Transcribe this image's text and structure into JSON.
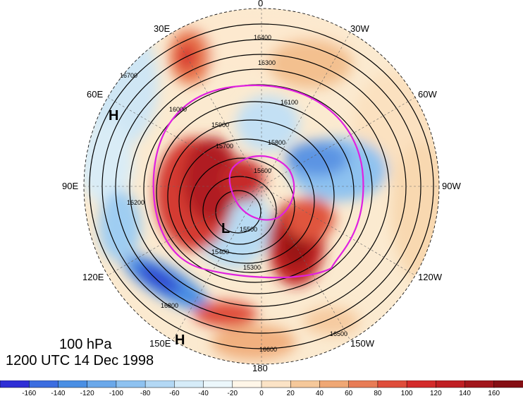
{
  "caption": {
    "level": "100 hPa",
    "time": "1200 UTC 14 Dec 1998"
  },
  "longitude_labels": {
    "north": "0",
    "ne": "30W",
    "e1": "60W",
    "east": "90W",
    "se1": "120W",
    "se2": "150W",
    "south": "180",
    "sw2": "150E",
    "sw1": "120E",
    "west": "90E",
    "nw1": "60E",
    "nw2": "30E"
  },
  "pressure_centers": {
    "low": "L",
    "high_west": "H",
    "high_south": "H"
  },
  "contour_labels": [
    "16400",
    "16300",
    "16100",
    "15900",
    "15800",
    "15700",
    "15600",
    "15500",
    "15400",
    "15300",
    "16000",
    "16200",
    "16500",
    "16600",
    "16700",
    "16800"
  ],
  "colorbar": {
    "ticks": [
      "-160",
      "-140",
      "-120",
      "-100",
      "-80",
      "-60",
      "-40",
      "-20",
      "0",
      "20",
      "40",
      "60",
      "80",
      "100",
      "120",
      "140",
      "160"
    ],
    "colors": [
      "#2f2fd6",
      "#3c6de0",
      "#4a8fe4",
      "#6aa8ea",
      "#8ec2f0",
      "#b3d8f4",
      "#d6ecf8",
      "#ecf7fb",
      "#fff6e8",
      "#fbe3c6",
      "#f5c89a",
      "#efa774",
      "#e87c56",
      "#df4d3b",
      "#d32b2b",
      "#c01f24",
      "#a2161c",
      "#850f14"
    ]
  },
  "colors": {
    "background": "#ffffff",
    "contour": "#000000",
    "jet_outline": "#e020e0",
    "coast": "#666666"
  }
}
